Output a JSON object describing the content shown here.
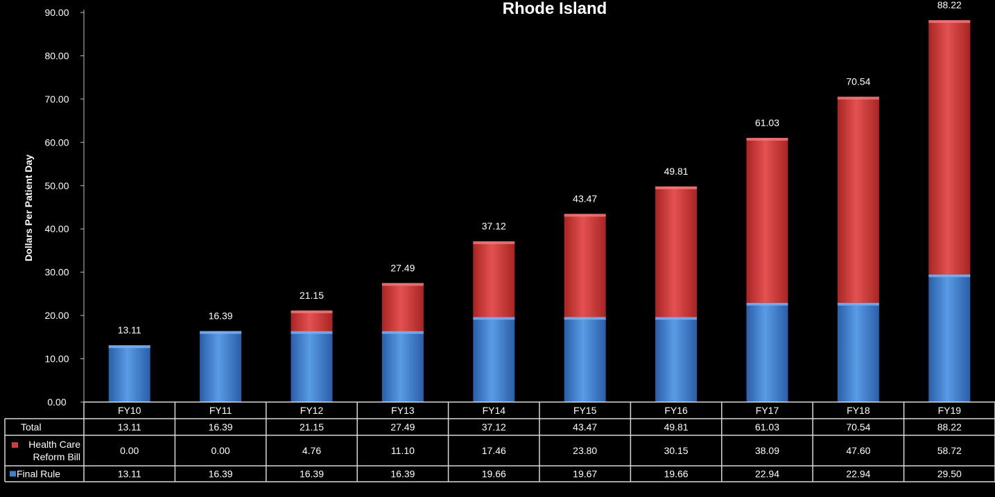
{
  "chart_data": {
    "type": "bar",
    "stacked": true,
    "title": "Rhode Island",
    "ylabel": "Dollars Per Patient Day",
    "xlabel": "",
    "ylim": [
      0,
      90
    ],
    "yticks": [
      "0.00",
      "10.00",
      "20.00",
      "30.00",
      "40.00",
      "50.00",
      "60.00",
      "70.00",
      "80.00",
      "90.00"
    ],
    "categories": [
      "FY10",
      "FY11",
      "FY12",
      "FY13",
      "FY14",
      "FY15",
      "FY16",
      "FY17",
      "FY18",
      "FY19"
    ],
    "series": [
      {
        "name": "Final Rule",
        "color": "#3f7fcf",
        "values": [
          13.11,
          16.39,
          16.39,
          16.39,
          19.66,
          19.67,
          19.66,
          22.94,
          22.94,
          29.5
        ],
        "labels": [
          "13.11",
          "16.39",
          "16.39",
          "16.39",
          "19.66",
          "19.67",
          "19.66",
          "22.94",
          "22.94",
          "29.50"
        ]
      },
      {
        "name": "Health Care Reform Bill",
        "color": "#d23b3b",
        "values": [
          0.0,
          0.0,
          4.76,
          11.1,
          17.46,
          23.8,
          30.15,
          38.09,
          47.6,
          58.72
        ],
        "labels": [
          "0.00",
          "0.00",
          "4.76",
          "11.10",
          "17.46",
          "23.80",
          "30.15",
          "38.09",
          "47.60",
          "58.72"
        ]
      }
    ],
    "totals": {
      "name": "Total",
      "values": [
        13.11,
        16.39,
        21.15,
        27.49,
        37.12,
        43.47,
        49.81,
        61.03,
        70.54,
        88.22
      ],
      "labels": [
        "13.11",
        "16.39",
        "21.15",
        "27.49",
        "37.12",
        "43.47",
        "49.81",
        "61.03",
        "70.54",
        "88.22"
      ]
    },
    "data_table": {
      "rows": [
        {
          "label_lines": [
            "Total"
          ],
          "source": "totals"
        },
        {
          "label_lines": [
            "Health Care",
            "Reform Bill"
          ],
          "source": "series.1"
        },
        {
          "label_lines": [
            "Final Rule"
          ],
          "source": "series.0"
        }
      ]
    },
    "grid": false,
    "legend": "in data table"
  }
}
